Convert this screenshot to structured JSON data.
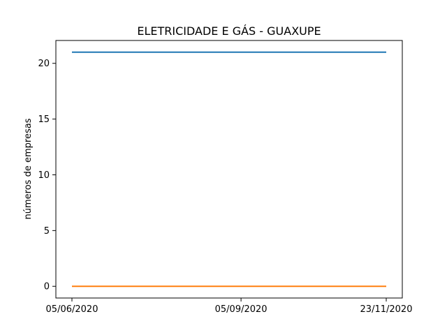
{
  "chart_data": {
    "type": "line",
    "title": "ELETRICIDADE E GÁS - GUAXUPE",
    "xlabel": "",
    "ylabel": "números de empresas",
    "x": [
      "05/06/2020",
      "05/09/2020",
      "23/11/2020"
    ],
    "xticks": [
      "05/06/2020",
      "05/09/2020",
      "23/11/2020"
    ],
    "yticks": [
      0,
      5,
      10,
      15,
      20
    ],
    "ylim": [
      -1.05,
      22.05
    ],
    "grid": false,
    "series": [
      {
        "values": [
          21,
          21,
          21
        ],
        "color": "#1f77b4"
      },
      {
        "values": [
          0,
          0,
          0
        ],
        "color": "#ff7f0e"
      }
    ]
  }
}
